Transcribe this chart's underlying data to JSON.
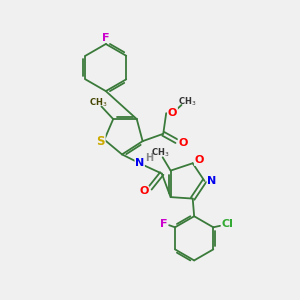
{
  "bg_color": "#f0f0f0",
  "bond_color": "#3a7a3a",
  "atom_colors": {
    "F": "#cc00cc",
    "O": "#ff0000",
    "S": "#ccaa00",
    "N": "#0000ee",
    "H": "#888888",
    "Cl": "#33aa33",
    "C": "#000000"
  },
  "lw": 1.3,
  "dbl_off": 0.07
}
